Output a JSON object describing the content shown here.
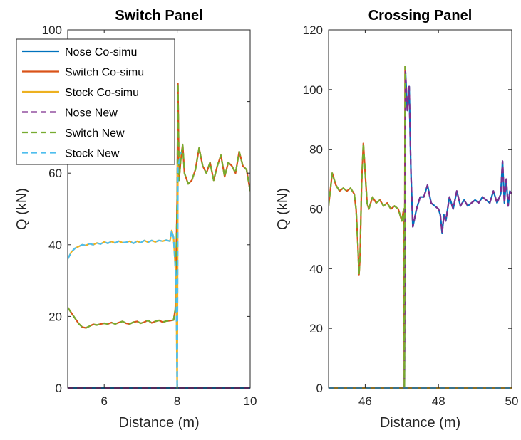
{
  "chart_data": [
    {
      "type": "line",
      "title": "Switch Panel",
      "xlabel": "Distance (m)",
      "ylabel": "Q (kN)",
      "xlim": [
        5,
        10
      ],
      "ylim": [
        0,
        100
      ],
      "xticks": [
        6,
        8,
        10
      ],
      "yticks": [
        0,
        20,
        40,
        60,
        80,
        100
      ],
      "grid": false,
      "legend": "top-left",
      "series": [
        {
          "name": "Nose Co-simu",
          "color": "#0072BD",
          "dash": "solid",
          "x": [
            5,
            10
          ],
          "y": [
            0,
            0
          ]
        },
        {
          "name": "Switch Co-simu",
          "color": "#D95319",
          "dash": "solid",
          "x": [
            5.0,
            5.1,
            5.2,
            5.3,
            5.4,
            5.5,
            5.6,
            5.7,
            5.8,
            5.9,
            6.0,
            6.1,
            6.2,
            6.3,
            6.4,
            6.5,
            6.6,
            6.7,
            6.8,
            6.9,
            7.0,
            7.1,
            7.2,
            7.3,
            7.4,
            7.5,
            7.6,
            7.7,
            7.8,
            7.9,
            7.95,
            8.0,
            8.02,
            8.05,
            8.1,
            8.15,
            8.2,
            8.3,
            8.4,
            8.5,
            8.6,
            8.7,
            8.8,
            8.9,
            9.0,
            9.1,
            9.2,
            9.3,
            9.4,
            9.5,
            9.6,
            9.7,
            9.8,
            9.9,
            10.0
          ],
          "y": [
            22.5,
            21,
            19.5,
            18,
            17,
            16.8,
            17.3,
            17.8,
            17.6,
            17.9,
            18.1,
            17.9,
            18.3,
            17.9,
            18.3,
            18.6,
            18.1,
            17.9,
            18.4,
            18.6,
            18.1,
            18.4,
            18.9,
            18.2,
            18.6,
            18.9,
            18.4,
            18.7,
            18.8,
            19,
            22,
            53,
            85,
            58,
            64,
            68,
            60,
            57,
            58,
            61,
            67,
            62,
            60,
            63,
            58,
            62,
            65,
            59,
            63,
            62,
            60,
            66,
            62,
            61,
            55
          ]
        },
        {
          "name": "Stock Co-simu",
          "color": "#EDB120",
          "dash": "solid",
          "x": [
            5.0,
            5.1,
            5.2,
            5.3,
            5.4,
            5.5,
            5.6,
            5.7,
            5.8,
            5.9,
            6.0,
            6.1,
            6.2,
            6.3,
            6.4,
            6.5,
            6.6,
            6.7,
            6.8,
            6.9,
            7.0,
            7.1,
            7.2,
            7.3,
            7.4,
            7.5,
            7.6,
            7.7,
            7.8,
            7.85,
            7.9,
            7.97,
            8.0,
            8.02,
            8.05,
            8.1
          ],
          "y": [
            36,
            38,
            39,
            39.5,
            40,
            39.8,
            40.3,
            40,
            40.5,
            40.2,
            40.8,
            40.4,
            40.9,
            40.5,
            41,
            40.6,
            40.7,
            41,
            40.4,
            41,
            40.6,
            41.2,
            40.7,
            41.2,
            40.8,
            41.2,
            41,
            41.3,
            41,
            44,
            42,
            30,
            0,
            62,
            63,
            66
          ]
        },
        {
          "name": "Nose New",
          "color": "#7E2F8E",
          "dash": "dashed",
          "x": [
            5,
            10
          ],
          "y": [
            0,
            0
          ]
        },
        {
          "name": "Switch New",
          "color": "#77AC30",
          "dash": "dashed",
          "x": [
            5.0,
            5.1,
            5.2,
            5.3,
            5.4,
            5.5,
            5.6,
            5.7,
            5.8,
            5.9,
            6.0,
            6.1,
            6.2,
            6.3,
            6.4,
            6.5,
            6.6,
            6.7,
            6.8,
            6.9,
            7.0,
            7.1,
            7.2,
            7.3,
            7.4,
            7.5,
            7.6,
            7.7,
            7.8,
            7.9,
            7.95,
            8.0,
            8.02,
            8.05,
            8.1,
            8.15,
            8.2,
            8.3,
            8.4,
            8.5,
            8.6,
            8.7,
            8.8,
            8.9,
            9.0,
            9.1,
            9.2,
            9.3,
            9.4,
            9.5,
            9.6,
            9.7,
            9.8,
            9.9,
            10.0
          ],
          "y": [
            22.5,
            21,
            19.5,
            18,
            17,
            16.8,
            17.3,
            17.8,
            17.6,
            17.9,
            18.1,
            17.9,
            18.3,
            17.9,
            18.3,
            18.6,
            18.1,
            17.9,
            18.4,
            18.6,
            18.1,
            18.4,
            18.9,
            18.2,
            18.6,
            18.9,
            18.4,
            18.7,
            18.8,
            19,
            22,
            53,
            85,
            58,
            64,
            68,
            60,
            57,
            58,
            61,
            67,
            62,
            60,
            63,
            58,
            62,
            65,
            59,
            63,
            62,
            60,
            66,
            62,
            61,
            55
          ]
        },
        {
          "name": "Stock New",
          "color": "#4DBEEE",
          "dash": "dashed",
          "x": [
            5.0,
            5.1,
            5.2,
            5.3,
            5.4,
            5.5,
            5.6,
            5.7,
            5.8,
            5.9,
            6.0,
            6.1,
            6.2,
            6.3,
            6.4,
            6.5,
            6.6,
            6.7,
            6.8,
            6.9,
            7.0,
            7.1,
            7.2,
            7.3,
            7.4,
            7.5,
            7.6,
            7.7,
            7.8,
            7.85,
            7.9,
            7.97,
            8.0,
            8.02,
            8.05,
            8.1
          ],
          "y": [
            36,
            38,
            39,
            39.5,
            40,
            39.8,
            40.3,
            40,
            40.5,
            40.2,
            40.8,
            40.4,
            40.9,
            40.5,
            41,
            40.6,
            40.7,
            41,
            40.4,
            41,
            40.6,
            41.2,
            40.7,
            41.2,
            40.8,
            41.2,
            41,
            41.3,
            41,
            44,
            42,
            30,
            0,
            62,
            63,
            66
          ]
        }
      ]
    },
    {
      "type": "line",
      "title": "Crossing Panel",
      "xlabel": "Distance (m)",
      "ylabel": "Q (kN)",
      "xlim": [
        45,
        50
      ],
      "ylim": [
        0,
        120
      ],
      "xticks": [
        46,
        48,
        50
      ],
      "yticks": [
        0,
        20,
        40,
        60,
        80,
        100,
        120
      ],
      "grid": false,
      "series": [
        {
          "name": "Nose Co-simu",
          "color": "#0072BD",
          "dash": "solid",
          "x": [
            45.0,
            47.07,
            47.1,
            47.15,
            47.2,
            47.25,
            47.3,
            47.4,
            47.5,
            47.6,
            47.7,
            47.8,
            47.9,
            48.0,
            48.05,
            48.1,
            48.15,
            48.2,
            48.3,
            48.4,
            48.5,
            48.6,
            48.7,
            48.8,
            48.9,
            49.0,
            49.1,
            49.2,
            49.3,
            49.4,
            49.5,
            49.6,
            49.7,
            49.75,
            49.8,
            49.85,
            49.9,
            49.95,
            50.0
          ],
          "y": [
            0,
            0,
            106,
            93,
            101,
            72,
            54,
            60,
            64,
            64,
            68,
            62,
            61,
            60,
            58,
            52,
            58,
            56,
            64,
            60,
            66,
            61,
            63,
            61,
            62,
            63,
            62,
            64,
            63,
            62,
            66,
            62,
            65,
            76,
            62,
            70,
            61,
            66,
            65
          ]
        },
        {
          "name": "Switch Co-simu",
          "color": "#D95319",
          "dash": "solid",
          "x": [
            45.0,
            45.1,
            45.2,
            45.3,
            45.4,
            45.5,
            45.6,
            45.7,
            45.75,
            45.8,
            45.83,
            45.86,
            45.9,
            45.95,
            46.0,
            46.05,
            46.1,
            46.2,
            46.3,
            46.4,
            46.5,
            46.6,
            46.7,
            46.8,
            46.9,
            47.0,
            47.05,
            47.07,
            47.09
          ],
          "y": [
            61,
            72,
            68,
            66,
            67,
            66,
            67,
            65,
            60,
            48,
            38,
            44,
            68,
            82,
            72,
            62,
            60,
            64,
            62,
            63,
            61,
            62,
            60,
            61,
            60,
            56,
            60,
            0,
            108
          ]
        },
        {
          "name": "Stock Co-simu",
          "color": "#EDB120",
          "dash": "solid",
          "x": [
            45,
            50
          ],
          "y": [
            0,
            0
          ]
        },
        {
          "name": "Nose New",
          "color": "#7E2F8E",
          "dash": "dashed",
          "x": [
            45.0,
            47.07,
            47.1,
            47.15,
            47.2,
            47.25,
            47.3,
            47.4,
            47.5,
            47.6,
            47.7,
            47.8,
            47.9,
            48.0,
            48.05,
            48.1,
            48.15,
            48.2,
            48.3,
            48.4,
            48.5,
            48.6,
            48.7,
            48.8,
            48.9,
            49.0,
            49.1,
            49.2,
            49.3,
            49.4,
            49.5,
            49.6,
            49.7,
            49.75,
            49.8,
            49.85,
            49.9,
            49.95,
            50.0
          ],
          "y": [
            0,
            0,
            106,
            93,
            101,
            72,
            54,
            60,
            64,
            64,
            68,
            62,
            61,
            60,
            58,
            52,
            58,
            56,
            64,
            60,
            66,
            61,
            63,
            61,
            62,
            63,
            62,
            64,
            63,
            62,
            66,
            62,
            65,
            76,
            62,
            70,
            61,
            66,
            65
          ]
        },
        {
          "name": "Switch New",
          "color": "#77AC30",
          "dash": "dashed",
          "x": [
            45.0,
            45.1,
            45.2,
            45.3,
            45.4,
            45.5,
            45.6,
            45.7,
            45.75,
            45.8,
            45.83,
            45.86,
            45.9,
            45.95,
            46.0,
            46.05,
            46.1,
            46.2,
            46.3,
            46.4,
            46.5,
            46.6,
            46.7,
            46.8,
            46.9,
            47.0,
            47.05,
            47.07,
            47.09
          ],
          "y": [
            61,
            72,
            68,
            66,
            67,
            66,
            67,
            65,
            60,
            48,
            38,
            44,
            68,
            82,
            72,
            62,
            60,
            64,
            62,
            63,
            61,
            62,
            60,
            61,
            60,
            56,
            60,
            0,
            108
          ]
        },
        {
          "name": "Stock New",
          "color": "#4DBEEE",
          "dash": "dashed",
          "x": [
            45,
            50
          ],
          "y": [
            0,
            0
          ]
        }
      ]
    }
  ]
}
